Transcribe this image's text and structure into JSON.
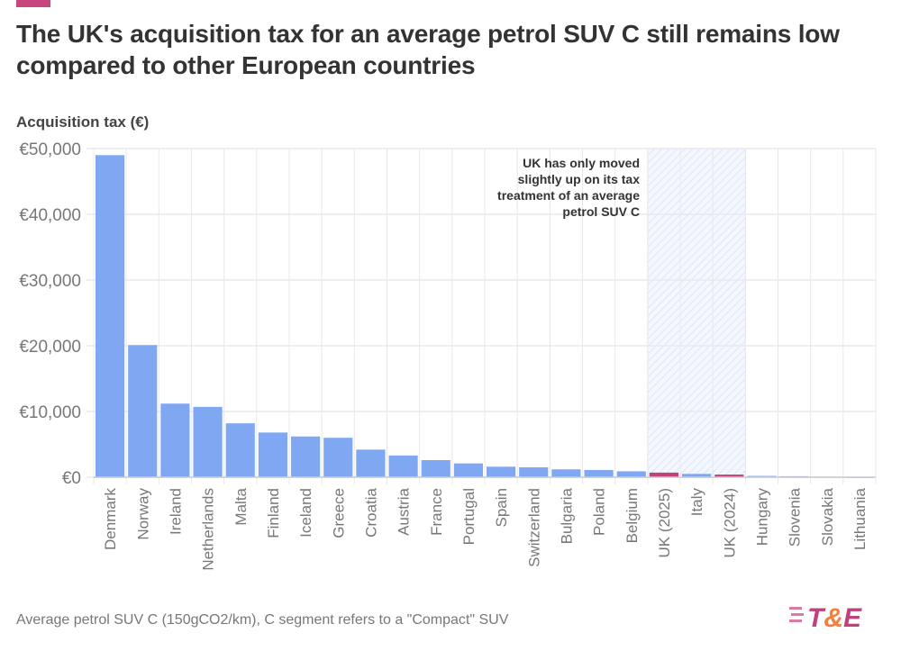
{
  "title": "The UK's acquisition tax for an average petrol SUV C still remains low compared to other European countries",
  "footnote": "Average petrol SUV C (150gCO2/km), C segment refers to a \"Compact\" SUV",
  "logo_text": "T&E",
  "colors": {
    "bar": "#7fa7f2",
    "highlight": "#c0427c",
    "accent": "#c8457f",
    "grid": "#e8e8ec",
    "band": "#dde6f7"
  },
  "chart_data": {
    "type": "bar",
    "title": "The UK's acquisition tax for an average petrol SUV C still remains low compared to other European countries",
    "ylabel": "Acquisition tax (€)",
    "xlabel": "",
    "ylim": [
      0,
      50000
    ],
    "yticks": [
      "€0",
      "€10,000",
      "€20,000",
      "€30,000",
      "€40,000",
      "€50,000"
    ],
    "grid": true,
    "categories": [
      "Denmark",
      "Norway",
      "Ireland",
      "Netherlands",
      "Malta",
      "Finland",
      "Iceland",
      "Greece",
      "Croatia",
      "Austria",
      "France",
      "Portugal",
      "Spain",
      "Switzerland",
      "Bulgaria",
      "Poland",
      "Belgium",
      "UK (2025)",
      "Italy",
      "UK (2024)",
      "Hungary",
      "Slovenia",
      "Slovakia",
      "Lithuania"
    ],
    "values": [
      49000,
      20100,
      11200,
      10700,
      8200,
      6800,
      6200,
      6000,
      4200,
      3300,
      2600,
      2100,
      1600,
      1500,
      1200,
      1100,
      900,
      700,
      500,
      400,
      200,
      150,
      60,
      30
    ],
    "highlighted": [
      "UK (2025)",
      "UK (2024)"
    ],
    "highlight_band": [
      "UK (2025)",
      "UK (2024)"
    ],
    "annotation": "UK has only moved slightly up on its tax treatment of an average petrol SUV C"
  }
}
